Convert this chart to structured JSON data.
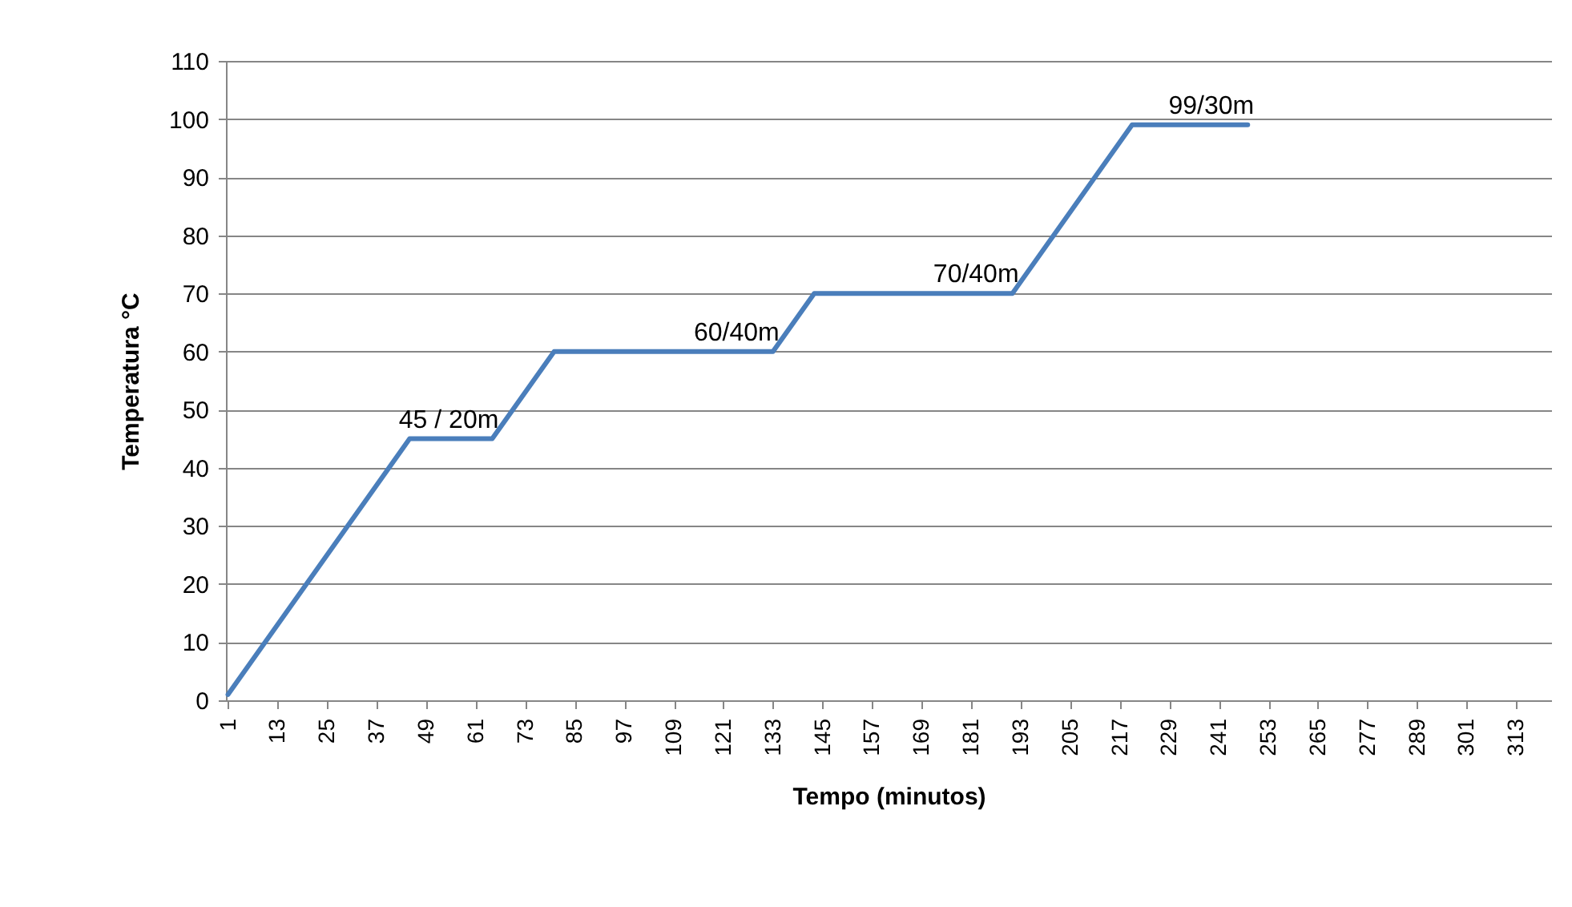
{
  "chart_data": {
    "type": "line",
    "xlabel": "Tempo (minutos)",
    "ylabel": "Temperatura °C",
    "x": [
      1,
      45,
      65,
      80,
      133,
      143,
      191,
      220,
      248
    ],
    "series": [
      {
        "color": "#4a7ebb",
        "values": [
          1,
          45,
          45,
          60,
          60,
          70,
          70,
          99,
          99
        ]
      }
    ],
    "xlim": [
      0.5,
      321.5
    ],
    "xticks": [
      1,
      13,
      25,
      37,
      49,
      61,
      73,
      85,
      97,
      109,
      121,
      133,
      145,
      157,
      169,
      181,
      193,
      205,
      217,
      229,
      241,
      253,
      265,
      277,
      289,
      301,
      313
    ],
    "ylim": [
      0,
      110
    ],
    "yticks": [
      0,
      10,
      20,
      30,
      40,
      50,
      60,
      70,
      80,
      90,
      100,
      110
    ],
    "grid": "y",
    "marker": "none",
    "line_style": "solid",
    "annotations": [
      "45 / 20m",
      "60/40m",
      "70/40m",
      "99/30m"
    ]
  }
}
